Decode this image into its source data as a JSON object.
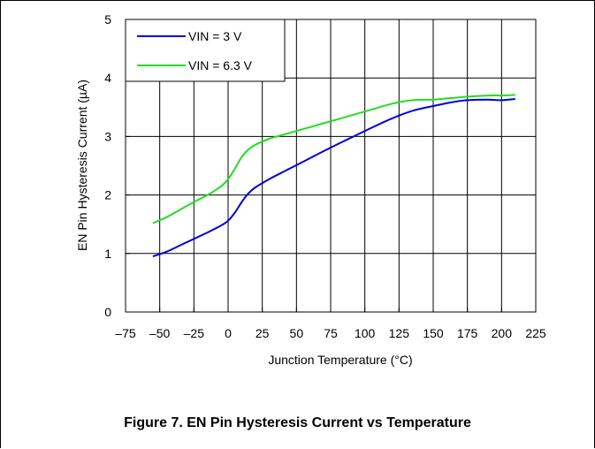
{
  "caption": "Figure 7. EN Pin Hysteresis Current vs Temperature",
  "chart_data": {
    "type": "line",
    "xlabel": "Junction Temperature (°C)",
    "ylabel": "EN Pin Hysteresis Current (µA)",
    "xlim": [
      -75,
      225
    ],
    "ylim": [
      0,
      5
    ],
    "xticks": [
      -75,
      -50,
      -25,
      0,
      25,
      50,
      75,
      100,
      125,
      150,
      175,
      200,
      225
    ],
    "xtick_labels": [
      "–75",
      "–50",
      "–25",
      "0",
      "25",
      "50",
      "75",
      "100",
      "125",
      "150",
      "175",
      "200",
      "225"
    ],
    "yticks": [
      0,
      1,
      2,
      3,
      4,
      5
    ],
    "ytick_labels": [
      "0",
      "1",
      "2",
      "3",
      "4",
      "5"
    ],
    "grid": true,
    "legend_position": "top-left",
    "series": [
      {
        "name": "VIN = 3 V",
        "color": "#0000dd",
        "x": [
          -55,
          -45,
          -35,
          -25,
          -15,
          -5,
          0,
          5,
          10,
          15,
          20,
          30,
          45,
          60,
          75,
          90,
          105,
          120,
          135,
          150,
          165,
          175,
          190,
          200,
          210
        ],
        "y": [
          0.95,
          1.03,
          1.14,
          1.25,
          1.36,
          1.48,
          1.56,
          1.7,
          1.88,
          2.03,
          2.13,
          2.27,
          2.45,
          2.63,
          2.81,
          2.98,
          3.15,
          3.31,
          3.44,
          3.52,
          3.59,
          3.62,
          3.63,
          3.62,
          3.64
        ]
      },
      {
        "name": "VIN = 6.3 V",
        "color": "#22dd22",
        "x": [
          -55,
          -45,
          -35,
          -25,
          -15,
          -5,
          0,
          5,
          10,
          15,
          20,
          30,
          45,
          60,
          75,
          90,
          105,
          120,
          135,
          150,
          165,
          175,
          190,
          200,
          210
        ],
        "y": [
          1.52,
          1.62,
          1.75,
          1.88,
          2.0,
          2.15,
          2.27,
          2.45,
          2.65,
          2.78,
          2.86,
          2.96,
          3.06,
          3.16,
          3.26,
          3.36,
          3.46,
          3.56,
          3.62,
          3.63,
          3.66,
          3.68,
          3.7,
          3.7,
          3.71
        ]
      }
    ]
  }
}
